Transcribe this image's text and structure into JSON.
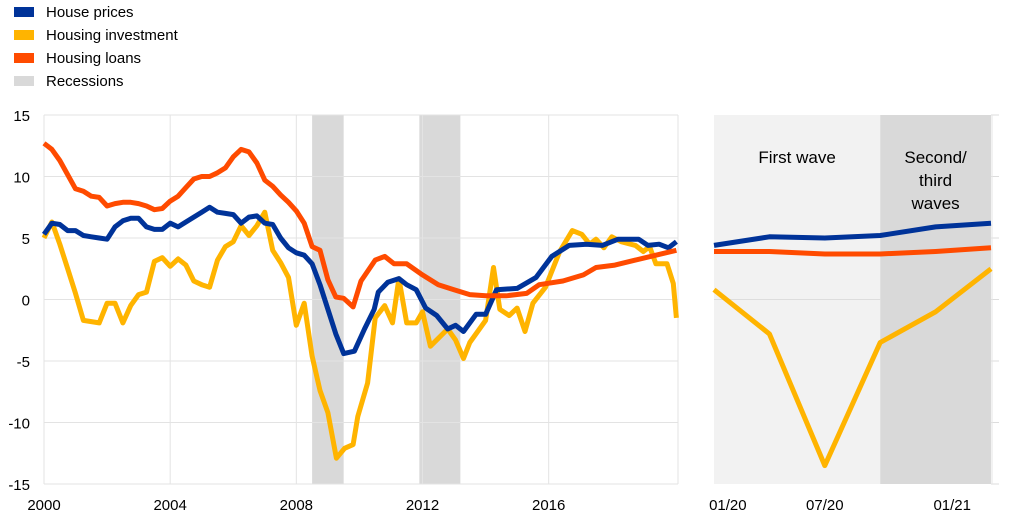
{
  "chart_data": [
    {
      "type": "line",
      "legend": {
        "placement": "top-left",
        "entries": [
          {
            "label": "House prices",
            "color": "#003399"
          },
          {
            "label": "Housing investment",
            "color": "#FFB400"
          },
          {
            "label": "Housing loans",
            "color": "#FF4B00"
          },
          {
            "label": "Recessions",
            "color": "#D9D9D9"
          }
        ]
      },
      "xlim": [
        2000,
        2020.1
      ],
      "ylim": [
        -15,
        15
      ],
      "yticks": [
        15,
        10,
        5,
        0,
        -5,
        -10,
        -15
      ],
      "xticks": [
        2000,
        2004,
        2008,
        2012,
        2016
      ],
      "grid": true,
      "recessions": [
        [
          2008.5,
          2009.5
        ],
        [
          2011.9,
          2013.2
        ]
      ],
      "series": [
        {
          "name": "House prices",
          "color": "#003399",
          "x": [
            2000,
            2000.25,
            2000.5,
            2000.75,
            2001,
            2001.25,
            2001.5,
            2001.75,
            2002,
            2002.25,
            2002.5,
            2002.75,
            2003,
            2003.25,
            2003.5,
            2003.75,
            2004,
            2004.25,
            2004.5,
            2004.75,
            2005,
            2005.25,
            2005.5,
            2005.75,
            2006,
            2006.25,
            2006.5,
            2006.75,
            2007,
            2007.25,
            2007.5,
            2007.75,
            2008,
            2008.25,
            2008.5,
            2008.75,
            2009,
            2009.25,
            2009.5,
            2009.84,
            2010.16,
            2010.47,
            2010.6,
            2010.9,
            2011.25,
            2011.5,
            2011.8,
            2012.1,
            2012.45,
            2012.8,
            2013.05,
            2013.3,
            2013.7,
            2014,
            2014.35,
            2015,
            2015.6,
            2016.1,
            2016.65,
            2017.2,
            2017.7,
            2018.2,
            2018.85,
            2019.15,
            2019.5,
            2019.8,
            2020.05
          ],
          "y": [
            5.3,
            6.2,
            6.1,
            5.6,
            5.6,
            5.2,
            5.1,
            5.0,
            4.9,
            5.9,
            6.4,
            6.6,
            6.6,
            5.9,
            5.7,
            5.7,
            6.2,
            5.9,
            6.3,
            6.7,
            7.1,
            7.5,
            7.1,
            7.0,
            6.9,
            6.2,
            6.7,
            6.8,
            6.2,
            6.1,
            5.0,
            4.2,
            3.8,
            3.6,
            2.9,
            1.2,
            -0.8,
            -2.8,
            -4.4,
            -4.2,
            -2.4,
            -0.8,
            0.6,
            1.4,
            1.7,
            1.2,
            0.8,
            -0.7,
            -1.3,
            -2.4,
            -2.1,
            -2.6,
            -1.2,
            -1.2,
            0.8,
            0.9,
            1.8,
            3.5,
            4.4,
            4.5,
            4.4,
            4.9,
            4.9,
            4.4,
            4.5,
            4.2,
            4.7
          ]
        },
        {
          "name": "Housing investment",
          "color": "#FFB400",
          "x": [
            2000,
            2000.25,
            2000.5,
            2000.75,
            2001,
            2001.25,
            2001.5,
            2001.75,
            2002,
            2002.25,
            2002.5,
            2002.75,
            2003,
            2003.25,
            2003.5,
            2003.75,
            2004,
            2004.25,
            2004.5,
            2004.75,
            2005,
            2005.25,
            2005.5,
            2005.75,
            2006,
            2006.25,
            2006.5,
            2006.75,
            2007,
            2007.25,
            2007.5,
            2007.75,
            2008,
            2008.25,
            2008.5,
            2008.75,
            2009,
            2009.27,
            2009.53,
            2009.8,
            2009.95,
            2010.26,
            2010.5,
            2010.8,
            2011.05,
            2011.25,
            2011.5,
            2011.8,
            2012,
            2012.25,
            2012.8,
            2013.05,
            2013.3,
            2013.5,
            2014,
            2014.25,
            2014.45,
            2014.75,
            2015,
            2015.25,
            2015.5,
            2015.9,
            2016.35,
            2016.75,
            2017.05,
            2017.3,
            2017.5,
            2017.75,
            2018,
            2018.3,
            2018.75,
            2019,
            2019.2,
            2019.4,
            2019.75,
            2019.95,
            2020.05
          ],
          "y": [
            5.0,
            6.3,
            4.5,
            2.5,
            0.5,
            -1.7,
            -1.8,
            -1.9,
            -0.3,
            -0.3,
            -1.9,
            -0.5,
            0.4,
            0.6,
            3.1,
            3.4,
            2.7,
            3.3,
            2.8,
            1.5,
            1.2,
            1.0,
            3.2,
            4.3,
            4.7,
            6.0,
            5.2,
            6.0,
            7.1,
            4.0,
            3.0,
            1.8,
            -2.1,
            -0.3,
            -4.6,
            -7.4,
            -9.2,
            -12.9,
            -12.1,
            -11.8,
            -9.5,
            -6.8,
            -1.5,
            -0.5,
            -1.9,
            1.7,
            -1.9,
            -1.9,
            -1.0,
            -3.8,
            -2.4,
            -3.3,
            -4.8,
            -3.5,
            -1.7,
            2.6,
            -0.8,
            -1.3,
            -0.7,
            -2.6,
            -0.3,
            1.0,
            3.9,
            5.6,
            5.3,
            4.5,
            4.9,
            4.2,
            5.1,
            4.7,
            4.4,
            3.9,
            4.3,
            2.9,
            2.9,
            1.3,
            -1.5
          ]
        },
        {
          "name": "Housing loans",
          "color": "#FF4B00",
          "x": [
            2000,
            2000.25,
            2000.5,
            2001,
            2001.25,
            2001.5,
            2001.75,
            2002,
            2002.25,
            2002.5,
            2002.75,
            2003,
            2003.25,
            2003.5,
            2003.75,
            2004,
            2004.25,
            2004.5,
            2004.75,
            2005,
            2005.25,
            2005.5,
            2005.75,
            2006,
            2006.25,
            2006.5,
            2006.75,
            2007,
            2007.25,
            2007.5,
            2007.75,
            2008,
            2008.25,
            2008.5,
            2008.75,
            2009,
            2009.25,
            2009.5,
            2009.8,
            2010.05,
            2010.5,
            2010.8,
            2011.1,
            2011.5,
            2012,
            2012.5,
            2013,
            2013.5,
            2014,
            2014.65,
            2015.3,
            2015.7,
            2016.45,
            2017.1,
            2017.5,
            2018.1,
            2018.75,
            2019.4,
            2020.05
          ],
          "y": [
            12.7,
            12.2,
            11.3,
            9.0,
            8.8,
            8.4,
            8.3,
            7.6,
            7.8,
            7.9,
            7.9,
            7.8,
            7.6,
            7.3,
            7.4,
            8.0,
            8.4,
            9.1,
            9.8,
            10.0,
            10.0,
            10.3,
            10.7,
            11.6,
            12.2,
            12.0,
            11.1,
            9.7,
            9.2,
            8.5,
            7.9,
            7.2,
            6.2,
            4.3,
            4.0,
            1.6,
            0.2,
            0.1,
            -0.6,
            1.5,
            3.2,
            3.5,
            2.9,
            2.9,
            2.0,
            1.2,
            0.8,
            0.4,
            0.3,
            0.3,
            0.5,
            1.2,
            1.5,
            2.0,
            2.6,
            2.8,
            3.2,
            3.6,
            4.0
          ]
        }
      ]
    },
    {
      "type": "line",
      "ylim": [
        -15,
        15
      ],
      "x": [
        "2019Q4",
        "2020Q1",
        "2020Q2",
        "2020Q3",
        "2020Q4",
        "2021Q1"
      ],
      "xticks": [
        "01/20",
        "07/20",
        "01/21"
      ],
      "periods": [
        {
          "label_lines": [
            "First wave"
          ],
          "from": "2019Q4",
          "to": "2020Q3",
          "color": "#F2F2F2"
        },
        {
          "label_lines": [
            "Second/",
            "third",
            "waves"
          ],
          "from": "2020Q3",
          "to": "2021Q1",
          "color": "#D9D9D9"
        }
      ],
      "series": [
        {
          "name": "House prices",
          "color": "#003399",
          "values": [
            4.4,
            5.1,
            5.0,
            5.2,
            5.9,
            6.2
          ]
        },
        {
          "name": "Housing investment",
          "color": "#FFB400",
          "values": [
            0.8,
            -2.8,
            -13.5,
            -3.5,
            -1.0,
            2.5
          ]
        },
        {
          "name": "Housing loans",
          "color": "#FF4B00",
          "values": [
            3.9,
            3.9,
            3.7,
            3.7,
            3.9,
            4.2
          ]
        }
      ]
    }
  ]
}
